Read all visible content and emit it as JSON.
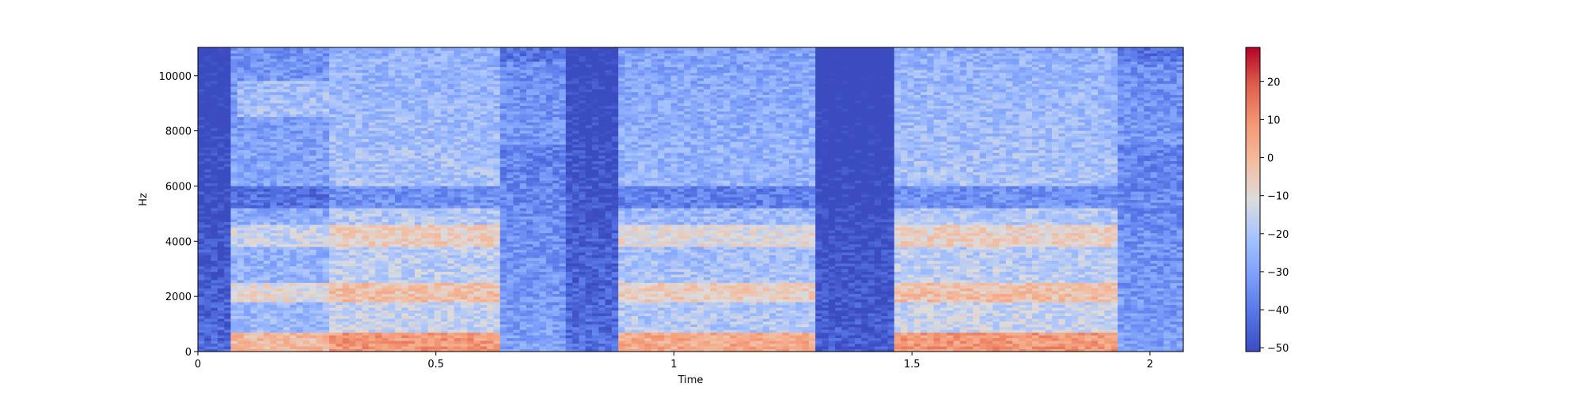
{
  "chart_data": {
    "type": "heatmap",
    "title": "",
    "xlabel": "Time",
    "ylabel": "Hz",
    "xlim": [
      0,
      2.07
    ],
    "ylim": [
      0,
      11025
    ],
    "x_ticks": [
      {
        "value": 0,
        "label": "0"
      },
      {
        "value": 0.5,
        "label": "0.5"
      },
      {
        "value": 1,
        "label": "1"
      },
      {
        "value": 1.5,
        "label": "1.5"
      },
      {
        "value": 2,
        "label": "2"
      }
    ],
    "y_ticks": [
      {
        "value": 0,
        "label": "0"
      },
      {
        "value": 2000,
        "label": "2000"
      },
      {
        "value": 4000,
        "label": "4000"
      },
      {
        "value": 6000,
        "label": "6000"
      },
      {
        "value": 8000,
        "label": "8000"
      },
      {
        "value": 10000,
        "label": "10000"
      }
    ],
    "colorbar": {
      "colormap": "coolwarm",
      "range": [
        -51,
        29
      ],
      "ticks": [
        {
          "value": 20,
          "label": "20"
        },
        {
          "value": 10,
          "label": "10"
        },
        {
          "value": 0,
          "label": "0"
        },
        {
          "value": -10,
          "label": "−10"
        },
        {
          "value": -20,
          "label": "−20"
        },
        {
          "value": -30,
          "label": "−30"
        },
        {
          "value": -40,
          "label": "−40"
        },
        {
          "value": -50,
          "label": "−50"
        }
      ]
    },
    "segments": [
      {
        "t_start": 0.0,
        "t_end": 0.07,
        "level": -44
      },
      {
        "t_start": 0.07,
        "t_end": 0.27,
        "level": -22
      },
      {
        "t_start": 0.27,
        "t_end": 0.63,
        "level": -14
      },
      {
        "t_start": 0.63,
        "t_end": 0.77,
        "level": -30
      },
      {
        "t_start": 0.77,
        "t_end": 0.88,
        "level": -42
      },
      {
        "t_start": 0.88,
        "t_end": 1.3,
        "level": -18
      },
      {
        "t_start": 1.3,
        "t_end": 1.46,
        "level": -46
      },
      {
        "t_start": 1.46,
        "t_end": 1.93,
        "level": -14
      },
      {
        "t_start": 1.93,
        "t_end": 2.07,
        "level": -30
      }
    ],
    "grid": false
  }
}
